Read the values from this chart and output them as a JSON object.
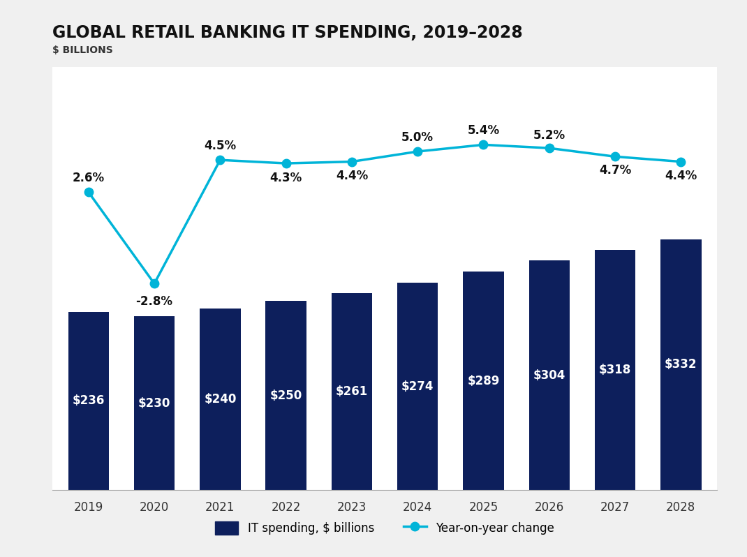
{
  "title": "GLOBAL RETAIL BANKING IT SPENDING, 2019–2028",
  "subtitle": "$ BILLIONS",
  "years": [
    2019,
    2020,
    2021,
    2022,
    2023,
    2024,
    2025,
    2026,
    2027,
    2028
  ],
  "it_spend": [
    236,
    230,
    240,
    250,
    261,
    274,
    289,
    304,
    318,
    332
  ],
  "yoy_change": [
    2.6,
    -2.8,
    4.5,
    4.3,
    4.4,
    5.0,
    5.4,
    5.2,
    4.7,
    4.4
  ],
  "bar_color": "#0d1f5c",
  "line_color": "#00b4d8",
  "bar_label_color": "#ffffff",
  "yoy_label_color": "#111111",
  "background_color": "#f0f0f0",
  "chart_bg_color": "#ffffff",
  "legend_bar_label": "IT spending, $ billions",
  "legend_line_label": "Year-on-year change",
  "title_fontsize": 17,
  "subtitle_fontsize": 10,
  "bar_label_fontsize": 12,
  "yoy_label_fontsize": 12,
  "tick_fontsize": 12,
  "legend_fontsize": 12,
  "bar_ylim_max": 560,
  "line_ylim_min": -15,
  "line_ylim_max": 10,
  "yoy_label_offsets": [
    0.45,
    -0.7,
    0.45,
    -0.5,
    -0.45,
    0.45,
    0.45,
    0.4,
    -0.45,
    -0.45
  ]
}
